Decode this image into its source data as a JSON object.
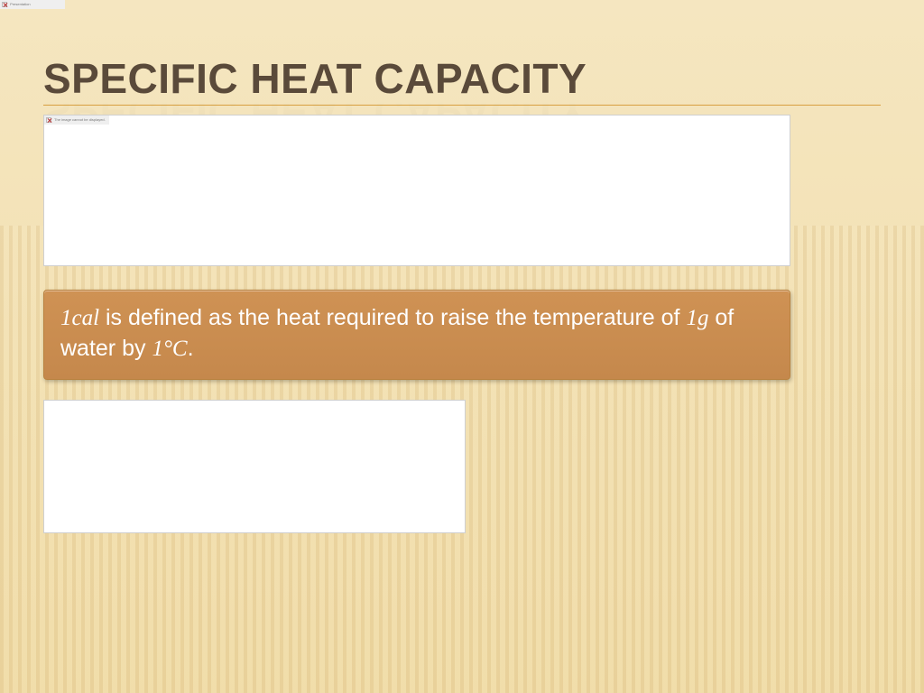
{
  "slide": {
    "title": "SPECIFIC HEAT CAPACITY",
    "title_color": "#5a4a3a",
    "title_fontsize": 46,
    "rule_color": "#d8a040",
    "background_top": "#f5e6c0",
    "background_bottom": "#f0dca8",
    "stripe_dark": "rgba(200,160,90,0.18)",
    "stripe_light": "rgba(255,245,210,0.05)"
  },
  "placeholder1": {
    "bg": "#ffffff",
    "border": "#cfcfcf",
    "broken_label": "The image cannot be displayed."
  },
  "callout": {
    "part1": "1cal",
    "part2": " is defined as the heat required to raise the temperature of ",
    "part3": "1g",
    "part4": " of water by ",
    "part5": "1°C",
    "part6": ".",
    "bg_top": "#cf9254",
    "bg_bottom": "#c5884c",
    "border": "#b9823f",
    "text_color": "#ffffff",
    "fontsize": 25
  },
  "placeholder2": {
    "bg": "#ffffff",
    "border": "#cfcfcf"
  },
  "tiny_tab_top": {
    "label": "Presentation"
  }
}
